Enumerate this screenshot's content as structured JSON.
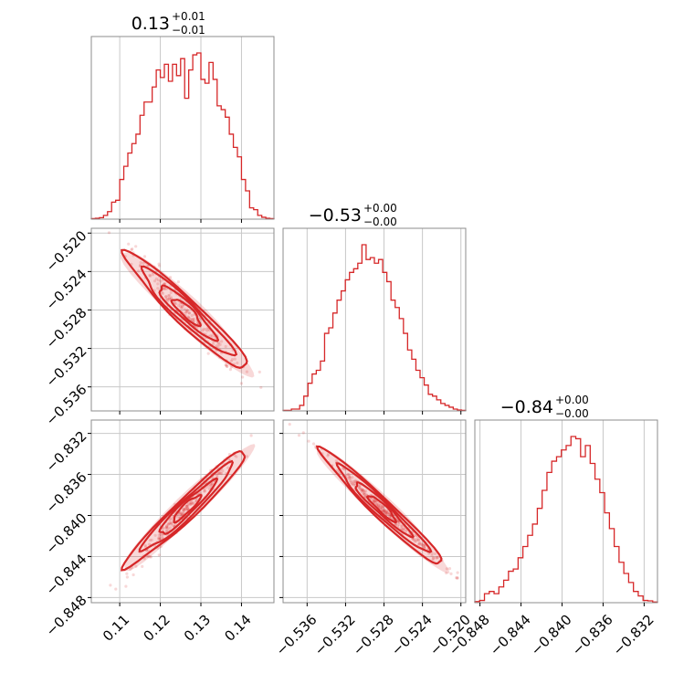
{
  "chart_data": {
    "type": "corner",
    "color": "#d62728",
    "parameters": [
      {
        "median": "0.13",
        "upper": "+0.01",
        "lower": "−0.01",
        "range": [
          0.103,
          0.148
        ],
        "ticks": [
          0.11,
          0.12,
          0.13,
          0.14
        ],
        "tick_labels": [
          "0.11",
          "0.12",
          "0.13",
          "0.14"
        ],
        "hist_values": [
          0.3,
          0.5,
          0.8,
          2,
          4,
          9,
          10,
          21,
          28,
          35,
          40,
          45,
          55,
          62,
          62,
          70,
          79,
          75,
          82,
          73,
          82,
          76,
          85,
          64,
          79,
          87,
          88,
          74,
          72,
          83,
          74,
          60,
          58,
          54,
          45,
          38,
          33,
          21,
          15,
          6,
          5,
          2,
          1,
          0.5,
          0.3
        ]
      },
      {
        "median": "−0.53",
        "upper": "+0.00",
        "lower": "−0.00",
        "range": [
          -0.5385,
          -0.5195
        ],
        "ticks": [
          -0.536,
          -0.532,
          -0.528,
          -0.524,
          -0.52
        ],
        "tick_labels": [
          "−0.536",
          "−0.532",
          "−0.528",
          "−0.524",
          "−0.520"
        ],
        "hist_values": [
          0.3,
          0.3,
          1,
          1,
          3,
          8,
          15,
          20,
          22,
          27,
          42,
          45,
          53,
          60,
          65,
          71,
          75,
          77,
          80,
          90,
          82,
          83,
          80,
          82,
          75,
          70,
          60,
          56,
          50,
          42,
          33,
          28,
          22,
          18,
          14,
          9,
          8,
          6,
          4,
          3,
          2,
          1,
          0.5,
          0.3
        ]
      },
      {
        "median": "−0.84",
        "upper": "+0.00",
        "lower": "−0.00",
        "range": [
          -0.8485,
          -0.8307
        ],
        "ticks": [
          -0.848,
          -0.844,
          -0.84,
          -0.836,
          -0.832
        ],
        "tick_labels": [
          "−0.848",
          "−0.844",
          "−0.840",
          "−0.836",
          "−0.832"
        ],
        "hist_values": [
          0.5,
          1,
          4,
          5,
          4,
          7,
          10,
          14,
          15,
          20,
          25,
          30,
          35,
          42,
          50,
          58,
          63,
          65,
          68,
          70,
          74,
          73,
          65,
          70,
          62,
          55,
          49,
          40,
          33,
          25,
          18,
          13,
          9,
          5,
          3,
          1,
          0.8,
          0.3
        ]
      }
    ]
  }
}
